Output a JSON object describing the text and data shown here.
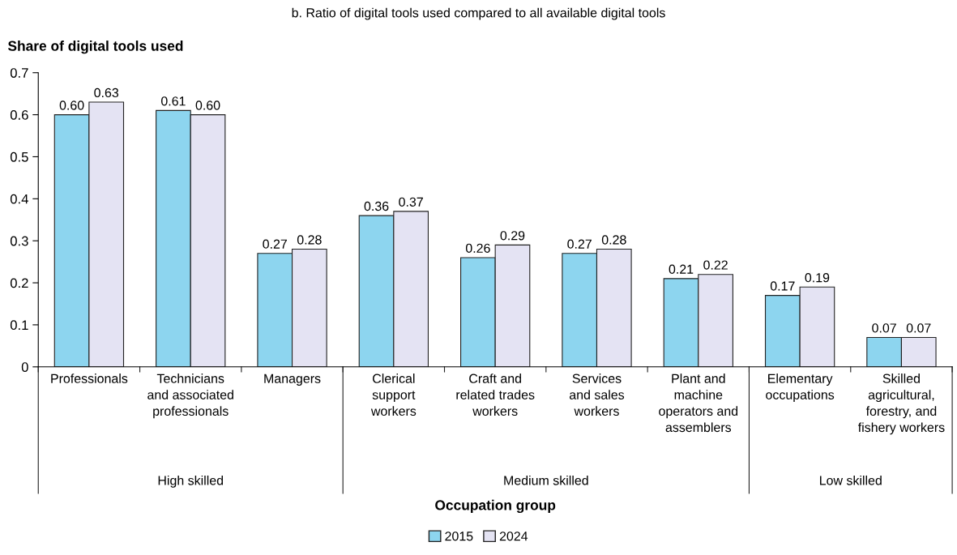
{
  "chart_data": {
    "type": "bar",
    "title": "b. Ratio of digital tools used compared to all available digital tools",
    "ylabel": "Share of digital tools used",
    "xlabel": "Occupation group",
    "categories": [
      "Professionals",
      "Technicians\nand associated\nprofessionals",
      "Managers",
      "Clerical\nsupport\nworkers",
      "Craft and\nrelated trades\nworkers",
      "Services\nand sales\nworkers",
      "Plant and\nmachine\noperators and\nassemblers",
      "Elementary\noccupations",
      "Skilled\nagricultural,\nforestry, and\nfishery workers"
    ],
    "series": [
      {
        "name": "2015",
        "color": "#8dd5ef",
        "values": [
          0.6,
          0.61,
          0.27,
          0.36,
          0.26,
          0.27,
          0.21,
          0.17,
          0.07
        ],
        "value_labels": [
          "0.60",
          "0.61",
          "0.27",
          "0.36",
          "0.26",
          "0.27",
          "0.21",
          "0.17",
          "0.07"
        ]
      },
      {
        "name": "2024",
        "color": "#e4e3f3",
        "values": [
          0.63,
          0.6,
          0.28,
          0.37,
          0.29,
          0.28,
          0.22,
          0.19,
          0.07
        ],
        "value_labels": [
          "0.63",
          "0.60",
          "0.28",
          "0.37",
          "0.29",
          "0.28",
          "0.22",
          "0.19",
          "0.07"
        ]
      }
    ],
    "ylim": [
      0,
      0.7
    ],
    "yticks": [
      {
        "value": 0,
        "label": "0"
      },
      0.1,
      0.2,
      0.3,
      0.4,
      0.5,
      0.6,
      0.7
    ],
    "legend": "bottom",
    "grid": false,
    "annotations": [
      "High skilled",
      "Medium skilled",
      "Low skilled"
    ]
  }
}
